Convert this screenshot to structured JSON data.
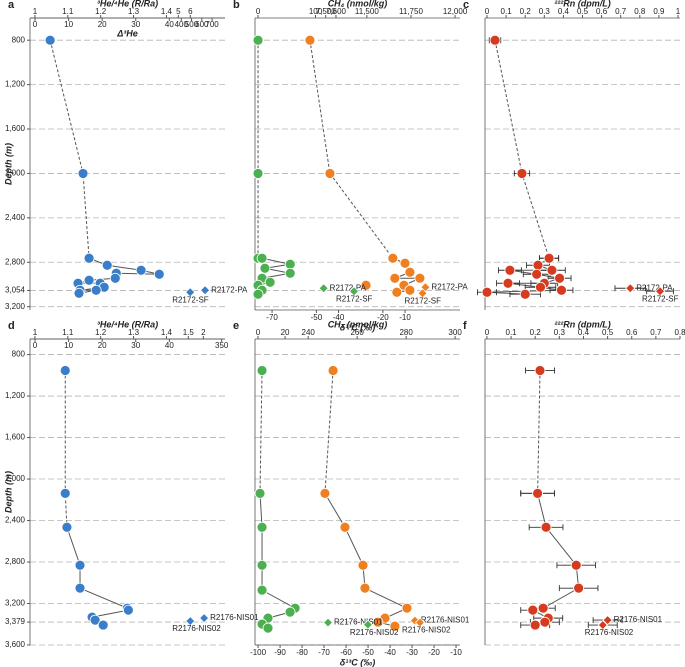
{
  "chart_data": [
    {
      "type": "profile",
      "panel_label": "a",
      "ylabel": "Depth (m)",
      "ylim": [
        600,
        3230
      ],
      "yticks": [
        800,
        {
          "value": 1200,
          "label": "1,200"
        },
        {
          "value": 1600,
          "label": "1,600"
        },
        {
          "value": 2000,
          "label": "2,000"
        },
        {
          "value": 2400,
          "label": "2,400"
        },
        {
          "value": 2800,
          "label": "2,800"
        },
        {
          "value": 3054,
          "label": "3,054"
        },
        {
          "value": 3200,
          "label": "3,200"
        }
      ],
      "top_axis": {
        "title": "³He/⁴He (R/Ra)",
        "color": "#3a7dc9",
        "segments": [
          [
            0.985,
            1.418
          ],
          [
            4.5,
            8.9
          ]
        ],
        "ticks": [
          1,
          1.1,
          1.2,
          1.3,
          1.4,
          5,
          6
        ]
      },
      "sub_axis": {
        "title": "Δ³He",
        "color": "#222222",
        "segments": [
          [
            -1.5,
            40.9
          ],
          [
            313,
            826
          ]
        ],
        "ticks": [
          0,
          10,
          20,
          30,
          40,
          400,
          500,
          600,
          700
        ]
      },
      "series": [
        {
          "axis": "sub",
          "color": "#3a7dc9",
          "marker": "circle",
          "line": "dashed",
          "y": [
            800,
            2000,
            2764
          ],
          "values": [
            4.5,
            14.3,
            16.1
          ]
        },
        {
          "axis": "sub",
          "color": "#3a7dc9",
          "marker": "circle",
          "line": "solid",
          "y": [
            2764,
            2827,
            2872,
            2908,
            2899,
            2944,
            2962,
            2989,
            2989,
            3025,
            3052,
            3052,
            3079
          ],
          "values": [
            16.1,
            21.5,
            31.6,
            37.0,
            24.2,
            23.9,
            16.1,
            12.8,
            19.4,
            20.6,
            13.4,
            18.2,
            13.1
          ]
        },
        {
          "axis": "sub",
          "color": "#3a7dc9",
          "marker": "diamond",
          "y": [
            3052,
            3070
          ],
          "values": [
            632,
            487
          ],
          "labels": [
            "R2172-PA",
            "R2172-SF"
          ]
        }
      ]
    },
    {
      "type": "profile",
      "panel_label": "b",
      "top_axis": {
        "title": "CH₄ (nmol/kg)",
        "color": "#4cb050",
        "segments": [
          [
            -5.3,
            105.3
          ],
          [
            7430,
            7650
          ],
          [
            11354,
            12028
          ]
        ],
        "ticks": [
          0,
          100,
          {
            "value": 7500,
            "label": "7,500"
          },
          {
            "value": 7600,
            "label": "7,600"
          },
          {
            "value": 11500,
            "label": "11,500"
          },
          {
            "value": 11750,
            "label": "11,750"
          },
          {
            "value": 12000,
            "label": "12,000"
          }
        ]
      },
      "sub_axis": {
        "title": "δ¹³C (‰)",
        "color": "#f07f22",
        "segments": [
          [
            -77.7,
            14.8
          ]
        ],
        "ticks": [
          -70,
          -50,
          -40,
          -20,
          -10
        ]
      },
      "series": [
        {
          "axis": "top",
          "color": "#4cb050",
          "marker": "circle",
          "line": "dashed",
          "y": [
            800,
            2000,
            2764
          ],
          "values": [
            0,
            0,
            0
          ]
        },
        {
          "axis": "top",
          "color": "#4cb050",
          "marker": "circle",
          "line": "solid",
          "y": [
            2764,
            2818,
            2854,
            2899,
            2944,
            2980,
            3007,
            3052,
            3088
          ],
          "values": [
            7,
            56,
            12,
            56,
            7,
            21,
            0,
            7,
            0
          ]
        },
        {
          "axis": "sub",
          "color": "#f07f22",
          "marker": "circle",
          "line": "dashed",
          "y": [
            800,
            2000,
            2764
          ],
          "values": [
            -52.9,
            -43.9,
            -15.5
          ]
        },
        {
          "axis": "sub",
          "color": "#f07f22",
          "marker": "circle",
          "line": "solid",
          "y": [
            2764,
            2809,
            2890,
            2944,
            2944,
            3007,
            3052,
            3070
          ],
          "values": [
            -15.5,
            -10.0,
            -7.8,
            -14.6,
            -3.3,
            -10.5,
            -7.8,
            -13.7
          ]
        },
        {
          "axis": "sub",
          "color": "#f07f22",
          "marker": "circle",
          "y": [
            3007
          ],
          "values": [
            -27.6
          ]
        },
        {
          "axis": "top",
          "color": "#4cb050",
          "marker": "diamond",
          "y": [
            3034,
            3061
          ],
          "values": [
            7480,
            11427
          ],
          "labels": [
            "R2172-PA",
            "R2172-SF"
          ]
        },
        {
          "axis": "sub",
          "color": "#f07f22",
          "marker": "diamond",
          "y": [
            3025,
            3079
          ],
          "values": [
            -0.8,
            -2.1
          ],
          "labels": [
            "R2172-PA",
            "R2172-SF"
          ]
        }
      ]
    },
    {
      "type": "profile",
      "panel_label": "c",
      "top_axis": {
        "title": "²²²Rn (dpm/L)",
        "color": "#d63b1f",
        "segments": [
          [
            -0.0105,
            1.0105
          ]
        ],
        "ticks": [
          0,
          0.1,
          0.2,
          0.3,
          0.4,
          0.5,
          0.6,
          0.7,
          0.8,
          0.9,
          1
        ]
      },
      "series": [
        {
          "axis": "top",
          "color": "#d63b1f",
          "marker": "circle",
          "line": "dashed",
          "y": [
            800,
            2000,
            2764
          ],
          "values": [
            0.042,
            0.183,
            0.325
          ],
          "errors": [
            0.03,
            0.04,
            0.05
          ]
        },
        {
          "axis": "top",
          "color": "#d63b1f",
          "marker": "circle",
          "line": "solid",
          "y": [
            2764,
            2827,
            2872,
            2872,
            2908,
            2944,
            2989,
            2989,
            3025,
            3052,
            3070,
            3088
          ],
          "values": [
            0.325,
            0.267,
            0.34,
            0.12,
            0.26,
            0.38,
            0.3,
            0.11,
            0.28,
            0.39,
            0.0,
            0.2
          ],
          "errors": [
            0.05,
            0.06,
            0.07,
            0.06,
            0.07,
            0.06,
            0.07,
            0.06,
            0.08,
            0.06,
            0.05,
            0.08
          ]
        },
        {
          "axis": "top",
          "color": "#d63b1f",
          "marker": "diamond",
          "y": [
            3034,
            3061
          ],
          "values": [
            0.75,
            0.906
          ],
          "errors": [
            0.08,
            0.07
          ],
          "labels": [
            "R2172-PA",
            "R2172-SF"
          ]
        }
      ]
    },
    {
      "type": "profile",
      "panel_label": "d",
      "ylabel": "Depth (m)",
      "ylim": [
        650,
        3600
      ],
      "yticks": [
        800,
        {
          "value": 1200,
          "label": "1,200"
        },
        {
          "value": 1600,
          "label": "1,600"
        },
        {
          "value": 2000,
          "label": "2,000"
        },
        {
          "value": 2400,
          "label": "2,400"
        },
        {
          "value": 2800,
          "label": "2,800"
        },
        {
          "value": 3200,
          "label": "3,200"
        },
        {
          "value": 3379,
          "label": "3,379"
        },
        {
          "value": 3600,
          "label": "3,600"
        }
      ],
      "top_axis": {
        "title": "³He/⁴He (R/Ra)",
        "color": "#3a7dc9",
        "segments": [
          [
            0.985,
            1.418
          ],
          [
            0.97,
            2.72
          ]
        ],
        "ticks": [
          1,
          1.1,
          1.2,
          1.3,
          1.4,
          1.5,
          2
        ]
      },
      "sub_axis": {
        "color": "#222222",
        "segments": [
          [
            -1.5,
            40.9
          ],
          [
            50,
            370
          ]
        ],
        "ticks": [
          0,
          10,
          20,
          30,
          40,
          350
        ]
      },
      "series": [
        {
          "axis": "sub",
          "color": "#3a7dc9",
          "marker": "circle",
          "line": "dashed",
          "y": [
            954,
            2138,
            2465
          ],
          "values": [
            9.0,
            9.0,
            9.5
          ]
        },
        {
          "axis": "sub",
          "color": "#3a7dc9",
          "marker": "circle",
          "line": "solid",
          "y": [
            2465,
            2831,
            3052,
            3245,
            3264,
            3331,
            3360,
            3408
          ],
          "values": [
            9.5,
            13.4,
            13.4,
            27.5,
            27.8,
            17.0,
            17.9,
            20.3
          ]
        },
        {
          "axis": "sub",
          "color": "#3a7dc9",
          "marker": "diamond",
          "y": [
            3340,
            3369
          ],
          "values": [
            243,
            159
          ],
          "labels": [
            "R2176-NIS01",
            "R2176-NIS02"
          ]
        }
      ]
    },
    {
      "type": "profile",
      "panel_label": "e",
      "top_axis": {
        "title": "CH₄ (nmol/kg)",
        "color": "#4cb050",
        "segments": [
          [
            -2.2,
            31.1
          ],
          [
            236.7,
            302
          ]
        ],
        "ticks": [
          0,
          20,
          240,
          260,
          280,
          300
        ]
      },
      "sub_axis": {
        "title": "δ¹³C (‰)",
        "color": "#f07f22",
        "segments": [
          [
            -101.4,
            -8.2
          ]
        ],
        "ticks": [
          -100,
          -90,
          -80,
          -70,
          -60,
          -50,
          -40,
          -30,
          -20,
          -10
        ]
      },
      "series": [
        {
          "axis": "top",
          "color": "#4cb050",
          "marker": "circle",
          "line": "dashed",
          "y": [
            954,
            2138
          ],
          "values": [
            3.0,
            1.5
          ]
        },
        {
          "axis": "top",
          "color": "#4cb050",
          "marker": "circle",
          "line": "solid",
          "y": [
            2138,
            2465,
            2831,
            3071,
            3245,
            3283,
            3341,
            3399,
            3437
          ],
          "values": [
            1.5,
            3.0,
            3.0,
            3.0,
            27.4,
            23.7,
            7.4,
            3.0,
            7.4
          ]
        },
        {
          "axis": "sub",
          "color": "#f07f22",
          "marker": "circle",
          "line": "dashed",
          "y": [
            954,
            2138
          ],
          "values": [
            -65.9,
            -69.6
          ]
        },
        {
          "axis": "sub",
          "color": "#f07f22",
          "marker": "circle",
          "line": "solid",
          "y": [
            2138,
            2465,
            2831,
            3052,
            3245,
            3341,
            3380,
            3418
          ],
          "values": [
            -69.6,
            -60.5,
            -52.3,
            -51.4,
            -32.3,
            -42.3,
            -45.5,
            -37.8
          ]
        },
        {
          "axis": "top",
          "color": "#4cb050",
          "marker": "diamond",
          "y": [
            3384,
            3404
          ],
          "values": [
            248.1,
            264.4
          ],
          "labels": [
            "R2176-NIS01",
            "R2176-NIS02"
          ]
        },
        {
          "axis": "sub",
          "color": "#f07f22",
          "marker": "diamond",
          "y": [
            3365,
            3384
          ],
          "values": [
            -28.7,
            -26.4
          ],
          "labels": [
            "R2176-NIS01",
            "R2176-NIS02"
          ]
        }
      ]
    },
    {
      "type": "profile",
      "panel_label": "f",
      "top_axis": {
        "title": "²²²Rn (dpm/L)",
        "color": "#d63b1f",
        "segments": [
          [
            -0.008,
            0.8
          ]
        ],
        "ticks": [
          0,
          0.1,
          0.2,
          0.3,
          0.4,
          0.5,
          0.6,
          0.7,
          0.8
        ]
      },
      "series": [
        {
          "axis": "top",
          "color": "#d63b1f",
          "marker": "circle",
          "line": "dashed",
          "y": [
            954,
            2138
          ],
          "values": [
            0.22,
            0.21
          ],
          "errors": [
            0.06,
            0.07
          ]
        },
        {
          "axis": "top",
          "color": "#d63b1f",
          "marker": "circle",
          "line": "solid",
          "y": [
            2138,
            2465,
            2831,
            3052,
            3245,
            3264,
            3341,
            3380,
            3408
          ],
          "values": [
            0.21,
            0.245,
            0.37,
            0.38,
            0.233,
            0.19,
            0.254,
            0.24,
            0.2
          ],
          "errors": [
            0.07,
            0.07,
            0.08,
            0.08,
            0.05,
            0.05,
            0.06,
            0.06,
            0.06
          ]
        },
        {
          "axis": "top",
          "color": "#d63b1f",
          "marker": "diamond",
          "y": [
            3360,
            3408
          ],
          "values": [
            0.5,
            0.48
          ],
          "errors": [
            0.06,
            0.06
          ],
          "labels": [
            "R2176-NIS01",
            "R2176-NIS02"
          ]
        }
      ]
    }
  ]
}
